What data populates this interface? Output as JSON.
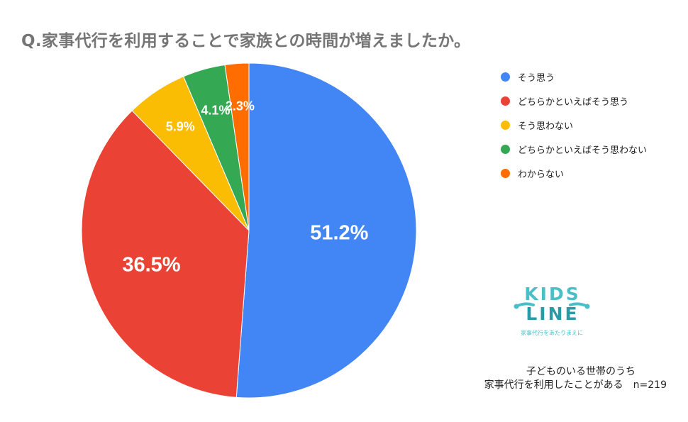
{
  "title": "Q.家事代行を利用することで家族との時間が増えましたか。",
  "chart_data": {
    "type": "pie",
    "title": "Q.家事代行を利用することで家族との時間が増えましたか。",
    "slices": [
      {
        "label": "そう思う",
        "value": 51.2,
        "display": "51.2%",
        "color": "#4285f4"
      },
      {
        "label": "どちらかといえばそう思う",
        "value": 36.5,
        "display": "36.5%",
        "color": "#ea4335"
      },
      {
        "label": "そう思わない",
        "value": 5.9,
        "display": "5.9%",
        "color": "#fbbc04"
      },
      {
        "label": "どちらかといえばそう思わない",
        "value": 4.1,
        "display": "4.1%",
        "color": "#34a853"
      },
      {
        "label": "わからない",
        "value": 2.3,
        "display": "2.3%",
        "color": "#ff6d01"
      }
    ],
    "legend_position": "top-right",
    "start": "12 o'clock, clockwise"
  },
  "logo": {
    "line1": "KIDS",
    "line2": "LINE",
    "tagline": "家事代行をあたりまえに",
    "color_teal": "#4bbfc8",
    "color_dark": "#2a9aa6"
  },
  "footnote": {
    "line1": "子どものいる世帯のうち",
    "line2": "家事代行を利用したことがある　n=219"
  }
}
